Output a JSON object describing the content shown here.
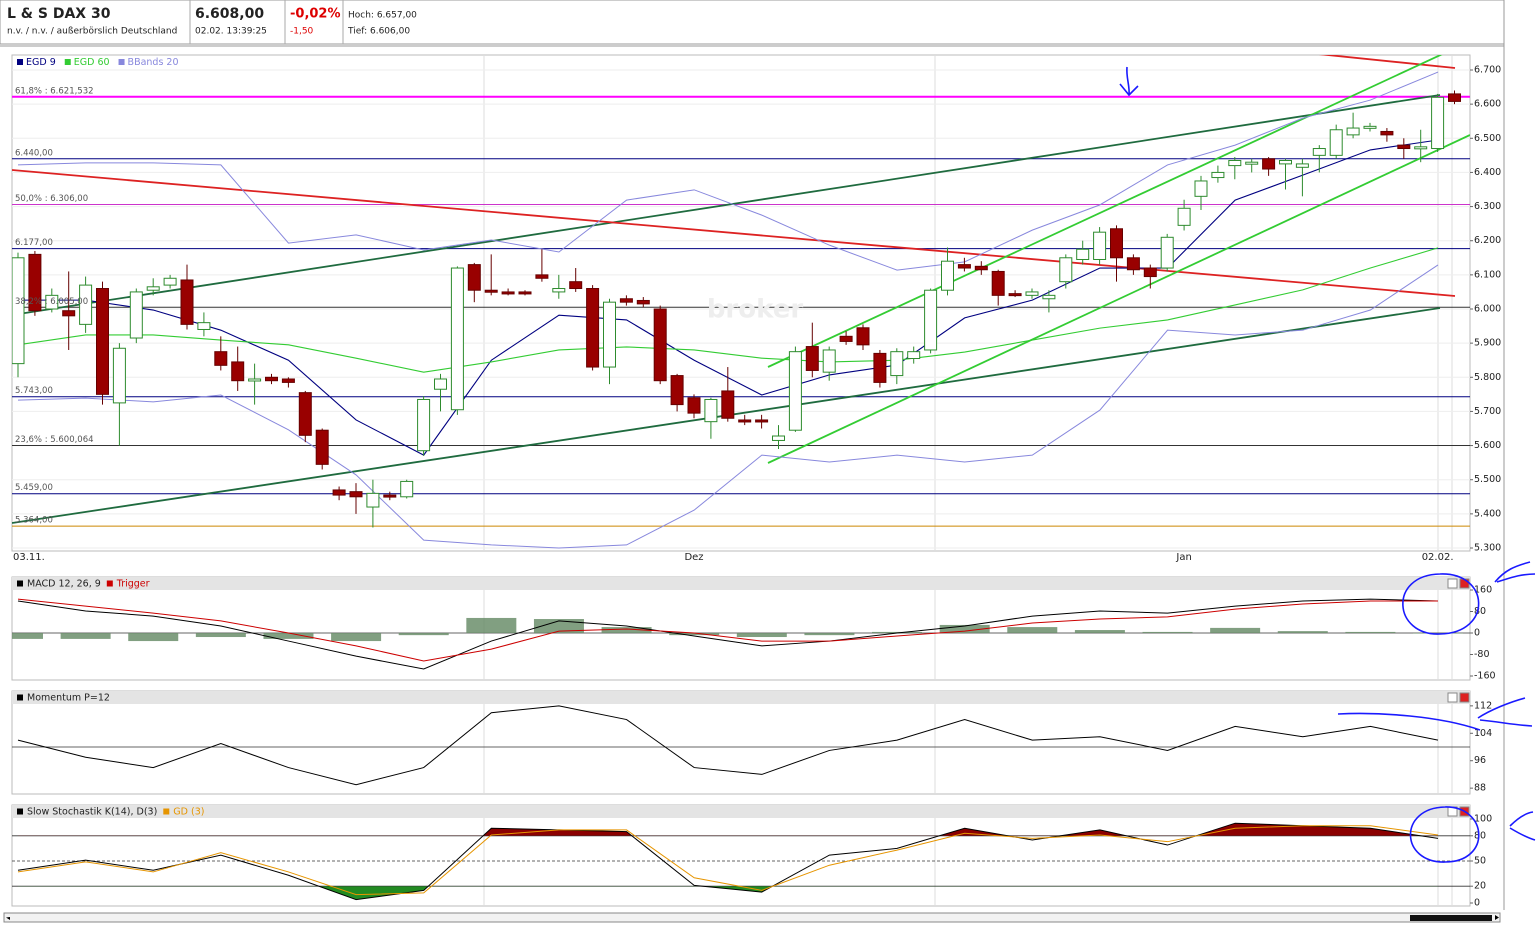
{
  "header": {
    "title": "L & S DAX 30",
    "subtitle": "n.v. / n.v. / außerbörslich Deutschland",
    "price": "6.608,00",
    "time": "02.02. 13:39:25",
    "change_pct": "-0,02%",
    "change": "-1,50",
    "high": "Hoch: 6.657,00",
    "low": "Tief: 6.606,00",
    "watermark": "broker"
  },
  "chart_data": [
    {
      "type": "candlestick",
      "categories": [
        "03.11.",
        null,
        null,
        null,
        null,
        null,
        null,
        null,
        null,
        null,
        null,
        null,
        null,
        null,
        null,
        null,
        null,
        null,
        null,
        null,
        null,
        null,
        null,
        null,
        null,
        null,
        null,
        null,
        null,
        null,
        null,
        null,
        null,
        null,
        null,
        null,
        null,
        null,
        null,
        null,
        "Dez",
        null,
        null,
        null,
        null,
        null,
        null,
        null,
        null,
        null,
        null,
        null,
        null,
        null,
        null,
        null,
        null,
        null,
        null,
        null,
        null,
        null,
        null,
        null,
        null,
        null,
        null,
        null,
        null,
        "Jan",
        null,
        null,
        null,
        null,
        null,
        null,
        null,
        null,
        null,
        null,
        null,
        null,
        null,
        null,
        "02.02.",
        null
      ],
      "open": [
        5840,
        6160,
        6000,
        5995,
        5955,
        6060,
        5725,
        5915,
        6055,
        6070,
        6085,
        5940,
        5875,
        5845,
        5790,
        5800,
        5795,
        5755,
        5645,
        5470,
        5465,
        5420,
        5455,
        5450,
        5585,
        5765,
        5705,
        6130,
        6055,
        6050,
        6050,
        6100,
        6050,
        6080,
        6060,
        5830,
        6030,
        6025,
        6000,
        5805,
        5740,
        5670,
        5760,
        5675,
        5675,
        5615,
        5645,
        5890,
        5815,
        5920,
        5945,
        5870,
        5805,
        5855,
        5880,
        6055,
        6130,
        6125,
        6110,
        6045,
        6040,
        6030,
        6080,
        6145,
        6145,
        6235,
        6150,
        6120,
        6120,
        6245,
        6330,
        6385,
        6420,
        6425,
        6440,
        6425,
        6415,
        6450,
        6450,
        6510,
        6530,
        6520,
        6480,
        6470,
        6470,
        6630
      ],
      "high": [
        6165,
        6170,
        6060,
        6110,
        6095,
        6080,
        5900,
        6060,
        6090,
        6100,
        6130,
        5990,
        5920,
        5890,
        5840,
        5810,
        5800,
        5760,
        5650,
        5480,
        5490,
        5500,
        5465,
        5500,
        5745,
        5810,
        6125,
        6135,
        6160,
        6060,
        6055,
        6175,
        6100,
        6120,
        6070,
        6030,
        6040,
        6035,
        6010,
        5810,
        5750,
        5740,
        5830,
        5690,
        5690,
        5660,
        5890,
        5960,
        5890,
        5935,
        5955,
        5880,
        5885,
        5890,
        6060,
        6180,
        6150,
        6140,
        6115,
        6055,
        6060,
        6055,
        6160,
        6200,
        6240,
        6245,
        6160,
        6130,
        6220,
        6320,
        6390,
        6420,
        6445,
        6440,
        6445,
        6440,
        6440,
        6480,
        6540,
        6575,
        6545,
        6530,
        6500,
        6525,
        6630,
        6640
      ],
      "low": [
        5800,
        5980,
        5990,
        5880,
        5930,
        5720,
        5600,
        5900,
        6040,
        6060,
        5940,
        5920,
        5820,
        5760,
        5720,
        5780,
        5770,
        5610,
        5530,
        5440,
        5400,
        5360,
        5440,
        5445,
        5570,
        5700,
        5690,
        6020,
        6040,
        6040,
        6040,
        6080,
        6030,
        6050,
        5820,
        5780,
        6010,
        6005,
        5780,
        5700,
        5680,
        5620,
        5670,
        5660,
        5650,
        5590,
        5640,
        5800,
        5790,
        5895,
        5880,
        5770,
        5780,
        5840,
        5870,
        6040,
        6110,
        6100,
        6010,
        6035,
        6030,
        5990,
        6060,
        6130,
        6130,
        6080,
        6100,
        6060,
        6110,
        6230,
        6290,
        6370,
        6380,
        6400,
        6390,
        6350,
        6330,
        6400,
        6440,
        6500,
        6520,
        6490,
        6440,
        6430,
        6460,
        6600
      ],
      "close": [
        6150,
        5995,
        6040,
        5980,
        6070,
        5750,
        5885,
        6050,
        6065,
        6090,
        5955,
        5960,
        5835,
        5790,
        5795,
        5790,
        5785,
        5630,
        5545,
        5455,
        5450,
        5460,
        5450,
        5495,
        5735,
        5795,
        6120,
        6055,
        6050,
        6045,
        6045,
        6090,
        6060,
        6060,
        5830,
        6020,
        6020,
        6015,
        5790,
        5720,
        5695,
        5735,
        5680,
        5670,
        5670,
        5628,
        5875,
        5820,
        5880,
        5905,
        5895,
        5785,
        5875,
        5875,
        6055,
        6140,
        6120,
        6115,
        6040,
        6040,
        6050,
        6040,
        6150,
        6175,
        6225,
        6150,
        6115,
        6095,
        6210,
        6295,
        6375,
        6400,
        6435,
        6430,
        6410,
        6435,
        6425,
        6470,
        6525,
        6530,
        6535,
        6510,
        6470,
        6475,
        6620,
        6608
      ],
      "up_color": "#ffffff",
      "up_edge": "#2e8b2e",
      "down_color": "#990000",
      "ylim": [
        5300,
        6700
      ],
      "yticks": [
        {
          "value": 5300,
          "label": "5.300"
        },
        {
          "value": 5400,
          "label": "5.400"
        },
        {
          "value": 5500,
          "label": "5.500"
        },
        {
          "value": 5600,
          "label": "5.600"
        },
        {
          "value": 5700,
          "label": "5.700"
        },
        {
          "value": 5800,
          "label": "5.800"
        },
        {
          "value": 5900,
          "label": "5.900"
        },
        {
          "value": 6000,
          "label": "6.000"
        },
        {
          "value": 6100,
          "label": "6.100"
        },
        {
          "value": 6200,
          "label": "6.200"
        },
        {
          "value": 6300,
          "label": "6.300"
        },
        {
          "value": 6400,
          "label": "6.400"
        },
        {
          "value": 6500,
          "label": "6.500"
        },
        {
          "value": 6600,
          "label": "6.600"
        },
        {
          "value": 6700,
          "label": "6.700"
        }
      ],
      "grid": true,
      "levels": [
        {
          "value": 6621.532,
          "label": "61,8% : 6.621,532",
          "color": "#ff00ff"
        },
        {
          "value": 6440,
          "label": "6.440,00",
          "color": "#000080"
        },
        {
          "value": 6306,
          "label": "50,0% : 6.306,00",
          "color": "#cc33cc"
        },
        {
          "value": 6177,
          "label": "6.177,00",
          "color": "#000080"
        },
        {
          "value": 6005,
          "label": "38,2% : 6.005,00",
          "color": "#333333"
        },
        {
          "value": 5743,
          "label": "5.743,00",
          "color": "#000080"
        },
        {
          "value": 5600.064,
          "label": "23,6% : 5.600,064",
          "color": "#333333"
        },
        {
          "value": 5459,
          "label": "5.459,00",
          "color": "#000080"
        },
        {
          "value": 5364,
          "label": "5.364,00",
          "color": "#cc8800"
        }
      ],
      "overlays": [
        {
          "name": "EGD 9",
          "color": "#000080",
          "values": [
            6026,
            6026,
            5997,
            5938,
            5850,
            5675,
            5572,
            5850,
            5982,
            5968,
            5850,
            5748,
            5807,
            5836,
            5974,
            6026,
            6120,
            6120,
            6319,
            6392,
            6466,
            6495
          ]
        },
        {
          "name": "EGD 60",
          "color": "#33cc33",
          "values": [
            5895,
            5924,
            5924,
            5909,
            5895,
            5856,
            5815,
            5845,
            5880,
            5889,
            5880,
            5856,
            5845,
            5850,
            5874,
            5909,
            5944,
            5968,
            6012,
            6056,
            6120,
            6179
          ]
        },
        {
          "name": "BBands 20",
          "color": "#8888dd",
          "values": [
            6422,
            6428,
            6428,
            6422,
            6193,
            6217,
            6173,
            6202,
            6167,
            6319,
            6349,
            6275,
            6187,
            6114,
            6138,
            6231,
            6305,
            6422,
            6480,
            6559,
            6612,
            6694
          ],
          "lower": [
            5733,
            5739,
            5728,
            5748,
            5646,
            5514,
            5323,
            5309,
            5300,
            5309,
            5411,
            5572,
            5552,
            5572,
            5552,
            5572,
            5704,
            5938,
            5924,
            5938,
            5997,
            6129
          ]
        }
      ]
    },
    {
      "type": "macd",
      "ylim": [
        -160,
        160
      ],
      "yticks": [
        -160,
        -80,
        0,
        80,
        160
      ],
      "hlines": [
        0
      ],
      "histogram": {
        "color": "#6b8e6b",
        "values": [
          -22,
          -22,
          -30,
          -15,
          -22,
          -30,
          -8,
          56,
          52,
          22,
          -8,
          -15,
          -8,
          4,
          30,
          22,
          11,
          4,
          19,
          7,
          4,
          0
        ]
      },
      "series": [
        {
          "name": "MACD 12, 26, 9",
          "color": "#000000",
          "values": [
            119,
            82,
            63,
            26,
            -30,
            -86,
            -134,
            -30,
            45,
            26,
            -11,
            -48,
            -30,
            0,
            26,
            63,
            82,
            74,
            100,
            119,
            126,
            119
          ]
        },
        {
          "name": "Trigger",
          "color": "#cc0000",
          "values": [
            126,
            100,
            74,
            45,
            0,
            -48,
            -104,
            -60,
            7,
            15,
            0,
            -30,
            -30,
            -11,
            7,
            37,
            52,
            60,
            89,
            108,
            119,
            119
          ]
        }
      ]
    },
    {
      "type": "line",
      "ylim": [
        86,
        114
      ],
      "yticks": [
        88,
        96,
        104,
        112
      ],
      "hlines": [
        100
      ],
      "series": [
        {
          "name": "Momentum P=12",
          "color": "#000000",
          "values": [
            102,
            97,
            94,
            101,
            94,
            89,
            94,
            110,
            112,
            108,
            94,
            92,
            99,
            102,
            108,
            102,
            103,
            99,
            106,
            103,
            106,
            102
          ]
        }
      ]
    },
    {
      "type": "stochastic",
      "ylim": [
        0,
        100
      ],
      "yticks": [
        0,
        20,
        50,
        80,
        100
      ],
      "hlines": [
        80,
        50,
        20
      ],
      "overbought": 80,
      "oversold": 20,
      "overbought_color": "#8b0000",
      "oversold_color": "#228b22",
      "series": [
        {
          "name": "Slow Stochastik K(14), D(3)",
          "color": "#000000",
          "values": [
            39,
            51,
            39,
            57,
            33,
            4,
            15,
            89,
            87,
            85,
            21,
            13,
            57,
            65,
            89,
            75,
            87,
            69,
            95,
            92,
            89,
            77
          ]
        },
        {
          "name": "GD (3)",
          "color": "#e69500",
          "values": [
            37,
            49,
            37,
            60,
            37,
            10,
            12,
            81,
            87,
            87,
            30,
            15,
            45,
            63,
            83,
            77,
            81,
            73,
            89,
            92,
            92,
            81
          ]
        }
      ]
    }
  ]
}
